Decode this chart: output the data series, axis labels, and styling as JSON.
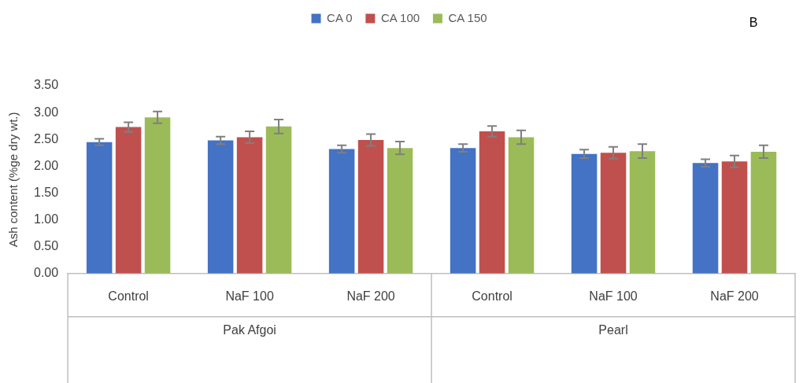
{
  "chart_data": {
    "type": "bar",
    "ylabel": "Ash content (%ge dry wt.)",
    "categories": [
      "Control",
      "NaF 100",
      "NaF 200",
      "Control",
      "NaF 100",
      "NaF 200"
    ],
    "series": [
      {
        "name": "CA 0",
        "color": "#4472c4",
        "values": [
          2.45,
          2.48,
          2.32,
          2.34,
          2.23,
          2.06
        ],
        "errors": [
          0.06,
          0.07,
          0.07,
          0.07,
          0.08,
          0.07
        ]
      },
      {
        "name": "CA 100",
        "color": "#c0504d",
        "values": [
          2.73,
          2.54,
          2.49,
          2.65,
          2.25,
          2.09
        ],
        "errors": [
          0.09,
          0.11,
          0.11,
          0.1,
          0.11,
          0.11
        ]
      },
      {
        "name": "CA 150",
        "color": "#9bbb59",
        "values": [
          2.91,
          2.74,
          2.34,
          2.54,
          2.28,
          2.27
        ],
        "errors": [
          0.11,
          0.13,
          0.12,
          0.13,
          0.13,
          0.12
        ]
      }
    ],
    "ylim": [
      0,
      3.5
    ],
    "yticks": [
      {
        "value": 0,
        "label": "0.00"
      },
      {
        "value": 0.5,
        "label": "0.50"
      },
      {
        "value": 1,
        "label": "1.00"
      },
      {
        "value": 1.5,
        "label": "1.50"
      },
      {
        "value": 2,
        "label": "2.00"
      },
      {
        "value": 2.5,
        "label": "2.50"
      },
      {
        "value": 3,
        "label": "3.00"
      },
      {
        "value": 3.5,
        "label": "3.50"
      }
    ],
    "grid": false,
    "legend": "top",
    "annotations": [
      "B",
      "Pak Afgoi",
      "Pearl"
    ]
  }
}
